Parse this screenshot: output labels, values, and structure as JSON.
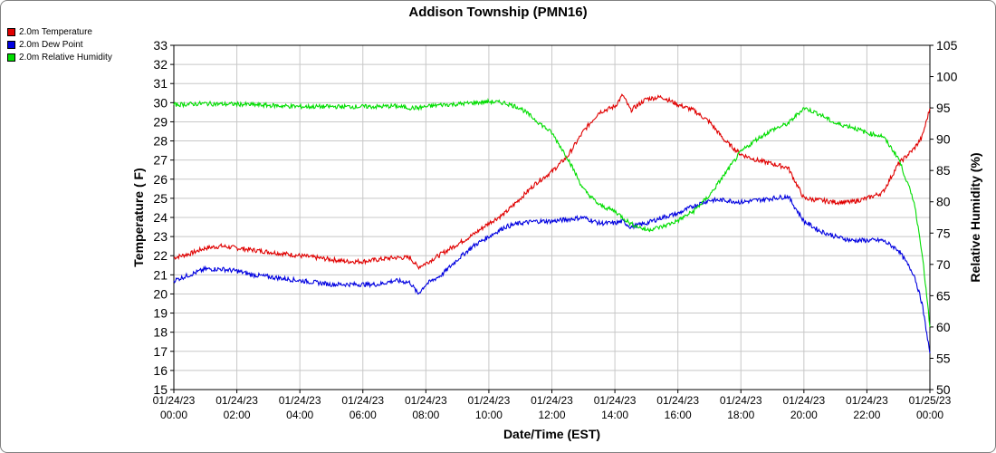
{
  "chart_data": {
    "type": "line",
    "title": "Addison Township (PMN16)",
    "xlabel": "Date/Time (EST)",
    "ylabel_left": "Temperature ( F)",
    "ylabel_right": "Relative Humidity (%)",
    "ylim_left": [
      15,
      33
    ],
    "ylim_right": [
      50,
      105
    ],
    "y_ticks_left": [
      "15",
      "16",
      "17",
      "18",
      "19",
      "20",
      "21",
      "22",
      "23",
      "24",
      "25",
      "26",
      "27",
      "28",
      "29",
      "30",
      "31",
      "32",
      "33"
    ],
    "y_ticks_right": [
      "50",
      "55",
      "60",
      "65",
      "70",
      "75",
      "80",
      "85",
      "90",
      "95",
      "100",
      "105"
    ],
    "x_ticks": [
      {
        "date": "01/24/23",
        "time": "00:00"
      },
      {
        "date": "01/24/23",
        "time": "02:00"
      },
      {
        "date": "01/24/23",
        "time": "04:00"
      },
      {
        "date": "01/24/23",
        "time": "06:00"
      },
      {
        "date": "01/24/23",
        "time": "08:00"
      },
      {
        "date": "01/24/23",
        "time": "10:00"
      },
      {
        "date": "01/24/23",
        "time": "12:00"
      },
      {
        "date": "01/24/23",
        "time": "14:00"
      },
      {
        "date": "01/24/23",
        "time": "16:00"
      },
      {
        "date": "01/24/23",
        "time": "18:00"
      },
      {
        "date": "01/24/23",
        "time": "20:00"
      },
      {
        "date": "01/24/23",
        "time": "22:00"
      },
      {
        "date": "01/25/23",
        "time": "00:00"
      }
    ],
    "x_hours": [
      0,
      0.5,
      1,
      1.5,
      2,
      2.5,
      3,
      3.5,
      4,
      4.5,
      5,
      5.5,
      6,
      6.5,
      7,
      7.5,
      7.75,
      8,
      8.5,
      9,
      9.5,
      10,
      10.5,
      11,
      11.5,
      12,
      12.5,
      13,
      13.5,
      14,
      14.25,
      14.5,
      15,
      15.5,
      16,
      16.5,
      17,
      17.5,
      18,
      18.5,
      19,
      19.5,
      20,
      20.5,
      21,
      21.5,
      22,
      22.5,
      23,
      23.5,
      23.75,
      24
    ],
    "legend_position": "top-left",
    "grid": true,
    "series": [
      {
        "name": "2.0m Temperature",
        "color": "#e00000",
        "axis": "left",
        "values": [
          21.9,
          22.1,
          22.4,
          22.5,
          22.4,
          22.3,
          22.2,
          22.1,
          22.0,
          21.9,
          21.8,
          21.7,
          21.7,
          21.8,
          21.9,
          21.9,
          21.4,
          21.6,
          22.1,
          22.6,
          23.1,
          23.7,
          24.2,
          25.0,
          25.8,
          26.4,
          27.2,
          28.5,
          29.5,
          29.8,
          30.4,
          29.6,
          30.2,
          30.3,
          29.9,
          29.6,
          29.0,
          28.0,
          27.3,
          27.0,
          26.8,
          26.6,
          25.0,
          24.9,
          24.8,
          24.8,
          25.0,
          25.3,
          26.8,
          27.6,
          28.2,
          29.7
        ]
      },
      {
        "name": "2.0m Dew Point",
        "color": "#0000e0",
        "axis": "left",
        "values": [
          20.7,
          21.0,
          21.3,
          21.3,
          21.2,
          21.0,
          20.9,
          20.8,
          20.7,
          20.6,
          20.5,
          20.5,
          20.5,
          20.5,
          20.7,
          20.6,
          20.0,
          20.5,
          21.0,
          21.8,
          22.5,
          23.0,
          23.5,
          23.7,
          23.8,
          23.8,
          23.9,
          24.0,
          23.7,
          23.7,
          23.8,
          23.5,
          23.7,
          24.0,
          24.2,
          24.6,
          24.9,
          24.9,
          24.8,
          24.9,
          25.0,
          25.1,
          23.8,
          23.3,
          23.0,
          22.8,
          22.8,
          22.8,
          22.3,
          21.0,
          19.5,
          16.9
        ]
      },
      {
        "name": "2.0m Relative Humidity",
        "color": "#00dd00",
        "axis": "right",
        "values": [
          95.5,
          95.6,
          95.7,
          95.6,
          95.6,
          95.5,
          95.4,
          95.3,
          95.2,
          95.2,
          95.2,
          95.2,
          95.2,
          95.2,
          95.3,
          95.0,
          95.0,
          95.2,
          95.5,
          95.6,
          95.8,
          96.0,
          95.8,
          95.0,
          93.0,
          91.0,
          87.0,
          82.0,
          79.5,
          78.5,
          77.5,
          76.5,
          75.5,
          76.0,
          77.0,
          78.5,
          81.0,
          84.5,
          88.0,
          90.0,
          91.5,
          92.5,
          95.0,
          94.0,
          92.5,
          92.0,
          91.0,
          90.5,
          87.0,
          80.0,
          72.0,
          60.0
        ]
      }
    ]
  }
}
